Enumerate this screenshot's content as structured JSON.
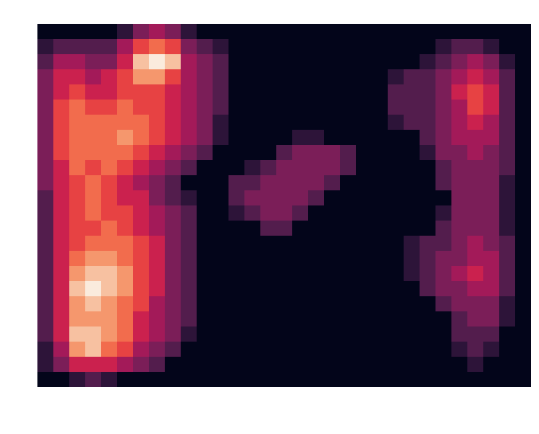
{
  "chart_data": {
    "type": "heatmap",
    "tick_labels": false,
    "value_range": [
      0,
      10
    ],
    "cells": [
      [
        0,
        0,
        0,
        0,
        0,
        1,
        3,
        4,
        3,
        1,
        0,
        0,
        0,
        0,
        0,
        0,
        0,
        0,
        0,
        0,
        0,
        0,
        0,
        0,
        0,
        0,
        0,
        0,
        0,
        0,
        0
      ],
      [
        1,
        2,
        2,
        2,
        2,
        4,
        6,
        7,
        6,
        3,
        2,
        1,
        0,
        0,
        0,
        0,
        0,
        0,
        0,
        0,
        0,
        0,
        0,
        0,
        0,
        1,
        2,
        2,
        1,
        0,
        0
      ],
      [
        2,
        4,
        4,
        3,
        3,
        5,
        9,
        10,
        9,
        4,
        3,
        2,
        0,
        0,
        0,
        0,
        0,
        0,
        0,
        0,
        0,
        0,
        0,
        0,
        1,
        2,
        3,
        4,
        3,
        1,
        0
      ],
      [
        3,
        5,
        5,
        4,
        5,
        6,
        8,
        8,
        6,
        4,
        3,
        2,
        0,
        0,
        0,
        0,
        0,
        0,
        0,
        0,
        0,
        0,
        1,
        2,
        2,
        3,
        4,
        5,
        4,
        2,
        0
      ],
      [
        3,
        5,
        6,
        5,
        5,
        6,
        6,
        6,
        5,
        4,
        3,
        2,
        0,
        0,
        0,
        0,
        0,
        0,
        0,
        0,
        0,
        0,
        2,
        2,
        2,
        3,
        5,
        6,
        5,
        2,
        0
      ],
      [
        3,
        6,
        7,
        6,
        6,
        7,
        6,
        6,
        5,
        4,
        3,
        2,
        0,
        0,
        0,
        0,
        0,
        0,
        0,
        0,
        0,
        0,
        2,
        2,
        2,
        3,
        4,
        6,
        5,
        2,
        0
      ],
      [
        3,
        6,
        7,
        7,
        7,
        7,
        7,
        6,
        5,
        4,
        3,
        1,
        0,
        0,
        0,
        0,
        0,
        0,
        0,
        0,
        0,
        0,
        1,
        2,
        2,
        3,
        4,
        5,
        4,
        2,
        0
      ],
      [
        3,
        6,
        7,
        7,
        7,
        8,
        7,
        6,
        5,
        4,
        3,
        1,
        0,
        0,
        0,
        0,
        1,
        1,
        0,
        0,
        0,
        0,
        0,
        0,
        2,
        3,
        4,
        4,
        4,
        2,
        0
      ],
      [
        3,
        6,
        7,
        7,
        7,
        7,
        6,
        5,
        4,
        3,
        2,
        0,
        0,
        0,
        0,
        2,
        3,
        3,
        3,
        2,
        0,
        0,
        0,
        0,
        1,
        3,
        3,
        4,
        3,
        2,
        0
      ],
      [
        3,
        5,
        7,
        6,
        7,
        6,
        5,
        4,
        3,
        2,
        0,
        0,
        0,
        1,
        2,
        3,
        3,
        3,
        3,
        2,
        0,
        0,
        0,
        0,
        0,
        2,
        3,
        3,
        3,
        2,
        0
      ],
      [
        3,
        5,
        6,
        7,
        6,
        5,
        4,
        3,
        2,
        0,
        0,
        0,
        2,
        2,
        3,
        3,
        3,
        3,
        2,
        0,
        0,
        0,
        0,
        0,
        0,
        2,
        3,
        3,
        3,
        1,
        0
      ],
      [
        2,
        5,
        6,
        7,
        6,
        5,
        5,
        3,
        2,
        1,
        0,
        0,
        2,
        3,
        3,
        3,
        3,
        2,
        0,
        0,
        0,
        0,
        0,
        0,
        0,
        0,
        3,
        3,
        3,
        1,
        0
      ],
      [
        2,
        5,
        6,
        7,
        6,
        6,
        5,
        4,
        3,
        2,
        0,
        0,
        1,
        2,
        3,
        3,
        2,
        0,
        0,
        0,
        0,
        0,
        0,
        0,
        0,
        1,
        3,
        3,
        3,
        1,
        0
      ],
      [
        2,
        5,
        6,
        6,
        7,
        6,
        5,
        4,
        3,
        2,
        0,
        0,
        0,
        0,
        2,
        2,
        0,
        0,
        0,
        0,
        0,
        0,
        0,
        0,
        0,
        2,
        3,
        3,
        3,
        1,
        0
      ],
      [
        2,
        5,
        6,
        7,
        7,
        7,
        6,
        5,
        3,
        2,
        0,
        0,
        0,
        0,
        0,
        0,
        0,
        0,
        0,
        0,
        0,
        0,
        0,
        1,
        2,
        2,
        3,
        4,
        3,
        2,
        0
      ],
      [
        2,
        5,
        7,
        8,
        8,
        7,
        6,
        5,
        3,
        2,
        0,
        0,
        0,
        0,
        0,
        0,
        0,
        0,
        0,
        0,
        0,
        0,
        0,
        1,
        2,
        3,
        3,
        4,
        4,
        2,
        0
      ],
      [
        2,
        5,
        8,
        9,
        9,
        8,
        6,
        5,
        3,
        2,
        0,
        0,
        0,
        0,
        0,
        0,
        0,
        0,
        0,
        0,
        0,
        0,
        0,
        1,
        2,
        3,
        4,
        5,
        4,
        2,
        0
      ],
      [
        2,
        5,
        9,
        10,
        9,
        8,
        6,
        5,
        3,
        2,
        0,
        0,
        0,
        0,
        0,
        0,
        0,
        0,
        0,
        0,
        0,
        0,
        0,
        0,
        2,
        3,
        3,
        4,
        4,
        2,
        0
      ],
      [
        2,
        5,
        8,
        9,
        8,
        7,
        6,
        4,
        3,
        2,
        0,
        0,
        0,
        0,
        0,
        0,
        0,
        0,
        0,
        0,
        0,
        0,
        0,
        0,
        0,
        2,
        3,
        3,
        3,
        1,
        0
      ],
      [
        2,
        5,
        8,
        8,
        8,
        7,
        5,
        4,
        3,
        2,
        0,
        0,
        0,
        0,
        0,
        0,
        0,
        0,
        0,
        0,
        0,
        0,
        0,
        0,
        0,
        0,
        2,
        3,
        3,
        1,
        0
      ],
      [
        2,
        5,
        9,
        9,
        8,
        7,
        5,
        4,
        3,
        1,
        0,
        0,
        0,
        0,
        0,
        0,
        0,
        0,
        0,
        0,
        0,
        0,
        0,
        0,
        0,
        0,
        2,
        2,
        2,
        0,
        0
      ],
      [
        1,
        4,
        8,
        9,
        7,
        6,
        4,
        3,
        2,
        0,
        0,
        0,
        0,
        0,
        0,
        0,
        0,
        0,
        0,
        0,
        0,
        0,
        0,
        0,
        0,
        0,
        1,
        2,
        1,
        0,
        0
      ],
      [
        1,
        3,
        5,
        5,
        5,
        4,
        3,
        2,
        0,
        0,
        0,
        0,
        0,
        0,
        0,
        0,
        0,
        0,
        0,
        0,
        0,
        0,
        0,
        0,
        0,
        0,
        0,
        1,
        0,
        0,
        0
      ],
      [
        0,
        0,
        1,
        2,
        1,
        0,
        0,
        0,
        0,
        0,
        0,
        0,
        0,
        0,
        0,
        0,
        0,
        0,
        0,
        0,
        0,
        0,
        0,
        0,
        0,
        0,
        0,
        0,
        0,
        0,
        0
      ]
    ]
  }
}
